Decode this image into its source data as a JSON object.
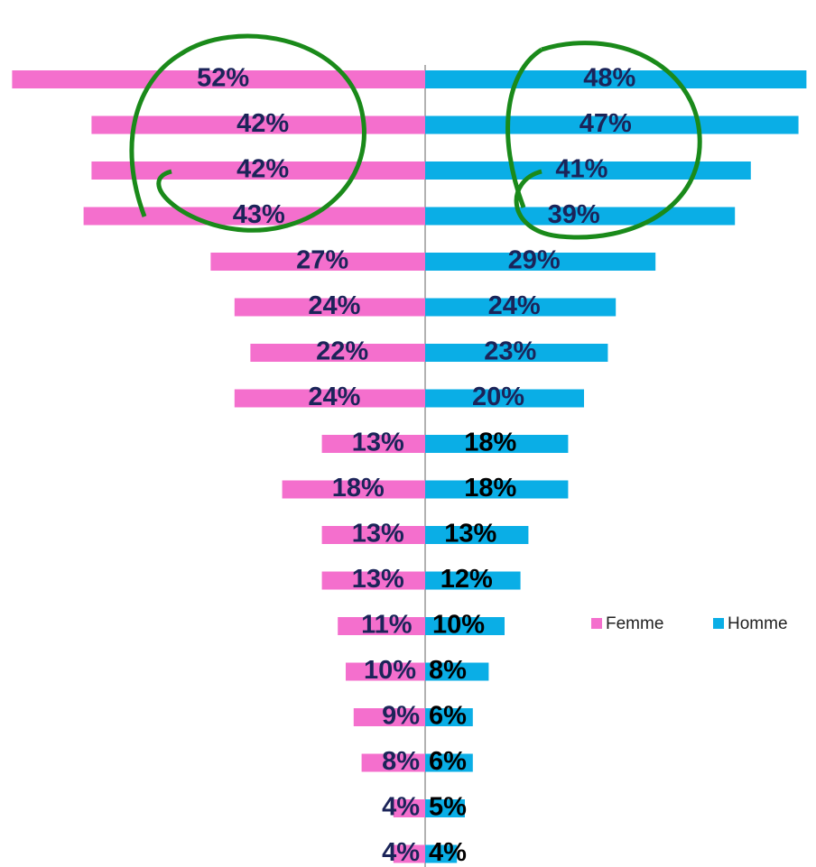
{
  "chart_data": {
    "type": "butterfly-bar",
    "series": [
      {
        "name": "Femme",
        "color": "#f46fcd",
        "values": [
          52,
          42,
          42,
          43,
          27,
          24,
          22,
          24,
          13,
          18,
          13,
          13,
          11,
          10,
          9,
          8,
          4,
          4
        ],
        "value_labels": [
          "52%",
          "42%",
          "42%",
          "43%",
          "27%",
          "24%",
          "22%",
          "24%",
          "13%",
          "18%",
          "13%",
          "13%",
          "11%",
          "10%",
          "9%",
          "8%",
          "4%",
          "4%"
        ]
      },
      {
        "name": "Homme",
        "color": "#0aaee6",
        "values": [
          48,
          47,
          41,
          39,
          29,
          24,
          23,
          20,
          18,
          18,
          13,
          12,
          10,
          8,
          6,
          6,
          5,
          4
        ],
        "value_labels": [
          "48%",
          "47%",
          "41%",
          "39%",
          "29%",
          "24%",
          "23%",
          "20%",
          "18%",
          "18%",
          "13%",
          "12%",
          "10%",
          "8%",
          "6%",
          "6%",
          "5%",
          "4%"
        ]
      }
    ]
  }
}
